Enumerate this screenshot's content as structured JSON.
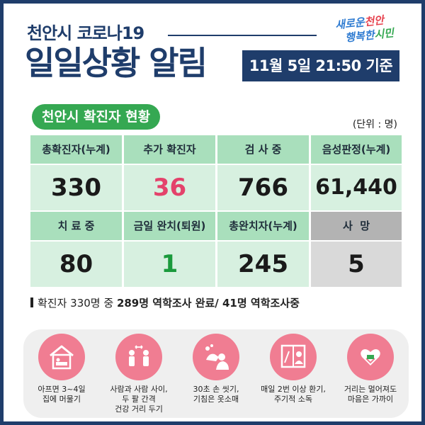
{
  "header": {
    "subtitle": "천안시 코로나19",
    "title": "일일상황 알림",
    "date": "11월 5일 21:50 기준",
    "logo_line1_a": "새로운",
    "logo_line1_b": "천안",
    "logo_line2_a": "행복한",
    "logo_line2_b": "시민"
  },
  "section": {
    "title": "천안시 확진자 현황",
    "unit": "(단위 : 명)"
  },
  "stats": {
    "total_label": "총확진자(누계)",
    "total_value": "330",
    "new_label": "추가 확진자",
    "new_value": "36",
    "testing_label": "검 사 중",
    "testing_value": "766",
    "negative_label": "음성판정(누계)",
    "negative_value": "61,440",
    "treatment_label": "치 료 중",
    "treatment_value": "80",
    "today_released_label": "금일 완치(퇴원)",
    "today_released_value": "1",
    "released_label": "총완치자(누계)",
    "released_value": "245",
    "death_label": "사  망",
    "death_value": "5"
  },
  "note": {
    "prefix": "확진자 330명 중 ",
    "bold": "289명 역학조사 완료/ 41명 역학조사중"
  },
  "rules": [
    {
      "icon": "home-rest-icon",
      "caption": "아프면 3~4일\n집에 머물기"
    },
    {
      "icon": "distance-icon",
      "caption": "사람과 사람 사이,\n두 팔 간격\n건강 거리 두기"
    },
    {
      "icon": "handwash-icon",
      "caption": "30초 손 씻기,\n기침은 옷소매"
    },
    {
      "icon": "ventilation-icon",
      "caption": "매일 2번 이상 환기,\n주기적 소독"
    },
    {
      "icon": "heart-hands-icon",
      "caption": "거리는 멀어져도\n마음은 가까이"
    }
  ],
  "colors": {
    "navy": "#1f3d6b",
    "green": "#35a852",
    "header_cell": "#a9dfbc",
    "value_cell": "#d7f0e0",
    "highlight_red": "#e4426b",
    "highlight_green": "#1a9a3c",
    "rule_circle": "#f07d92"
  }
}
